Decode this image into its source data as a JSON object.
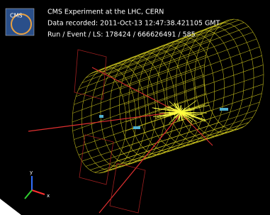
{
  "header": {
    "logo": "CMS",
    "title": "CMS Experiment at the LHC, CERN",
    "recorded": "Data recorded: 2011-Oct-13 12:47:38.421105 GMT",
    "run": "Run / Event / LS: 178424 / 666626491 / 585"
  },
  "axes": {
    "y": "y",
    "x": "x"
  }
}
